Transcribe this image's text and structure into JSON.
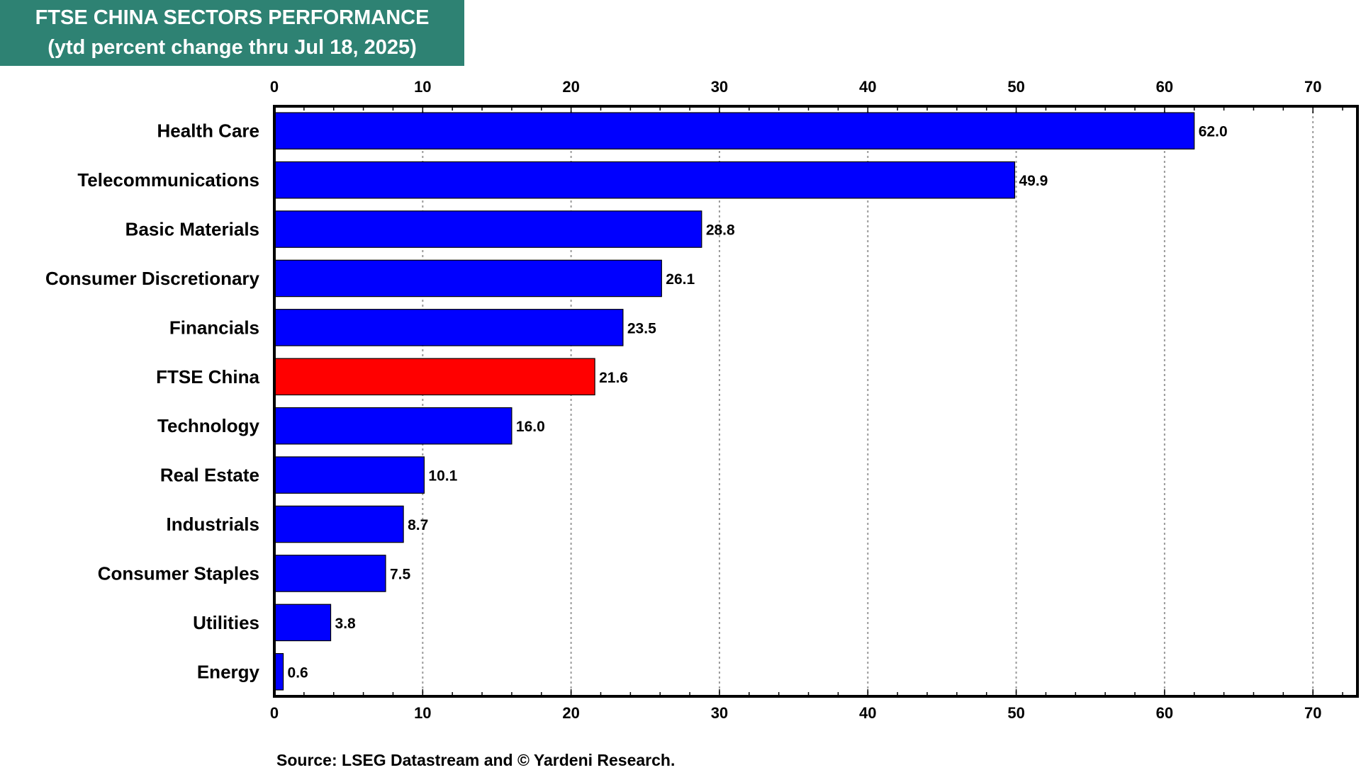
{
  "chart_data": {
    "type": "bar",
    "orientation": "horizontal",
    "title": "FTSE CHINA SECTORS PERFORMANCE",
    "subtitle": "(ytd percent change thru Jul 18, 2025)",
    "categories": [
      "Health Care",
      "Telecommunications",
      "Basic Materials",
      "Consumer Discretionary",
      "Financials",
      "FTSE China",
      "Technology",
      "Real Estate",
      "Industrials",
      "Consumer Staples",
      "Utilities",
      "Energy"
    ],
    "values": [
      62.0,
      49.9,
      28.8,
      26.1,
      23.5,
      21.6,
      16.0,
      10.1,
      8.7,
      7.5,
      3.8,
      0.6
    ],
    "value_labels": [
      "62.0",
      "49.9",
      "28.8",
      "26.1",
      "23.5",
      "21.6",
      "16.0",
      "10.1",
      "8.7",
      "7.5",
      "3.8",
      "0.6"
    ],
    "bar_colors": [
      "#0000ff",
      "#0000ff",
      "#0000ff",
      "#0000ff",
      "#0000ff",
      "#ff0000",
      "#0000ff",
      "#0000ff",
      "#0000ff",
      "#0000ff",
      "#0000ff",
      "#0000ff"
    ],
    "xlim": [
      0,
      73
    ],
    "xticks": [
      0,
      10,
      20,
      30,
      40,
      50,
      60,
      70
    ],
    "xtick_labels": [
      "0",
      "10",
      "20",
      "30",
      "40",
      "50",
      "60",
      "70"
    ],
    "xaxis_position": "top and bottom",
    "grid": true,
    "xlabel": "",
    "ylabel": ""
  },
  "colors": {
    "header_background": "#2e8273",
    "bar": "#0000ff",
    "highlight_bar": "#ff0000"
  },
  "source": "Source: LSEG Datastream and © Yardeni Research."
}
